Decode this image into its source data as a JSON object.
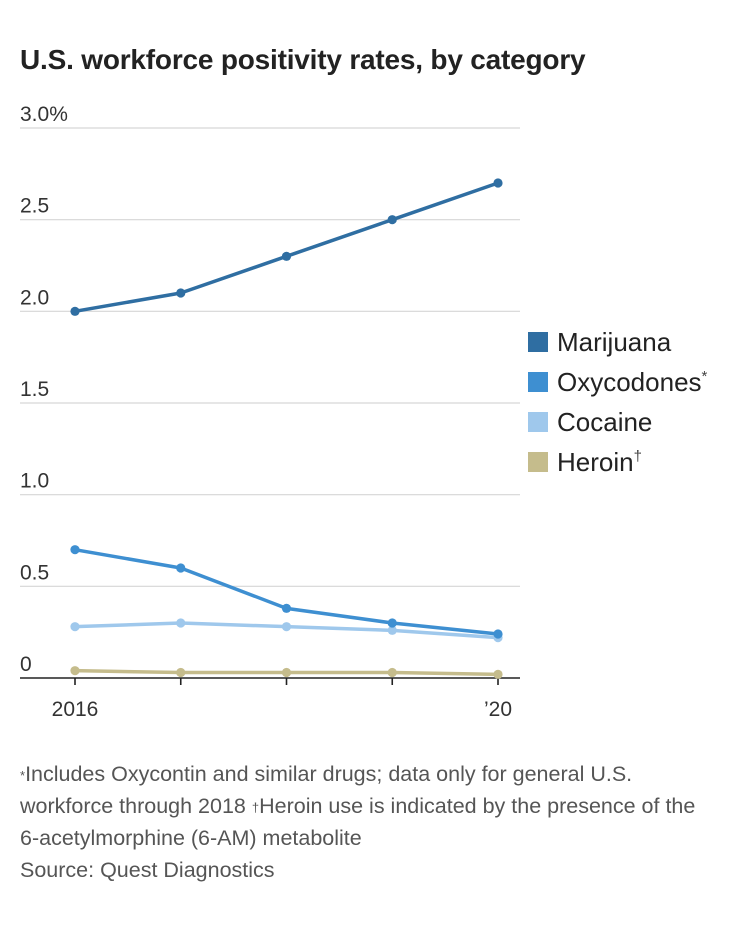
{
  "title": "U.S. workforce positivity rates, by category",
  "chart_data": {
    "type": "line",
    "title": "U.S. workforce positivity rates, by category",
    "xlabel": "",
    "ylabel": "",
    "x": [
      2016,
      2017,
      2018,
      2019,
      2020
    ],
    "x_tick_labels": [
      "2016",
      "",
      "",
      "",
      "’20"
    ],
    "y_tick_labels": [
      "3.0%",
      "2.5",
      "2.0",
      "1.5",
      "1.0",
      "0.5",
      "0"
    ],
    "y_ticks": [
      3.0,
      2.5,
      2.0,
      1.5,
      1.0,
      0.5,
      0
    ],
    "ylim": [
      0,
      3.0
    ],
    "grid": true,
    "legend_position": "right",
    "series": [
      {
        "name": "Marijuana",
        "legend_mark": "",
        "color": "#2f6ea2",
        "values": [
          2.0,
          2.1,
          2.3,
          2.5,
          2.7
        ]
      },
      {
        "name": "Oxycodones",
        "legend_mark": "*",
        "color": "#3e8fd1",
        "values": [
          0.7,
          0.6,
          0.38,
          0.3,
          0.24
        ]
      },
      {
        "name": "Cocaine",
        "legend_mark": "",
        "color": "#9fc8ec",
        "values": [
          0.28,
          0.3,
          0.28,
          0.26,
          0.22
        ]
      },
      {
        "name": "Heroin",
        "legend_mark": "†",
        "color": "#c5bc8c",
        "values": [
          0.04,
          0.03,
          0.03,
          0.03,
          0.02
        ]
      }
    ]
  },
  "notes": {
    "footnote_mark_1": "*",
    "footnote_1": "Includes Oxycontin and similar drugs; data only for general U.S. workforce through 2018",
    "footnote_mark_2": "†",
    "footnote_2": "Heroin use is indicated by the presence of the 6-acetylmorphine (6-AM) metabolite",
    "source": "Source: Quest Diagnostics"
  }
}
